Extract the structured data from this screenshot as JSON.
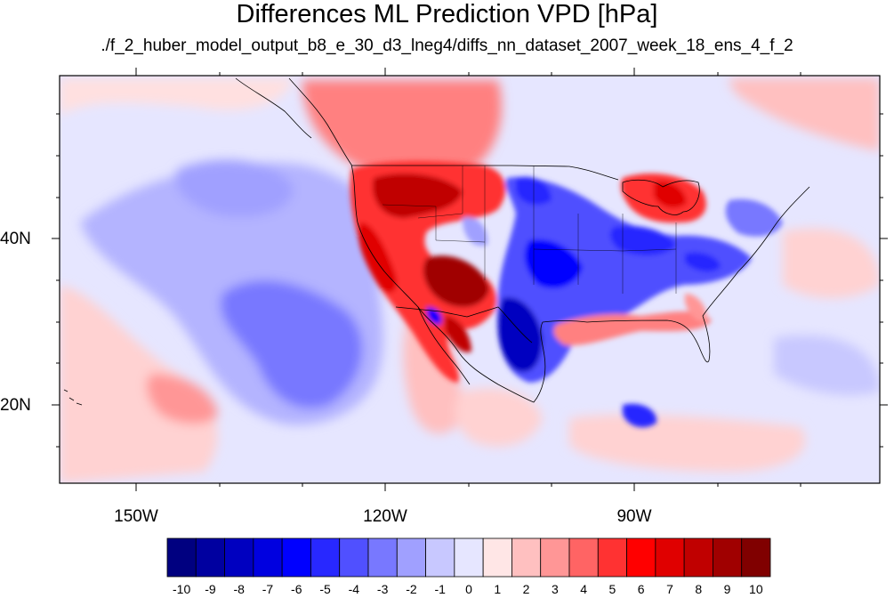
{
  "figure": {
    "title": "Differences ML Prediction VPD [hPa]",
    "subtitle": "./f_2_huber_model_output_b8_e_30_d3_lneg4/diffs_nn_dataset_2007_week_18_ens_4_f_2"
  },
  "map": {
    "projection": "cylindrical equidistant",
    "lon_range": [
      -160,
      -62
    ],
    "lat_range": [
      10,
      59
    ],
    "lat_labels": [
      "40N",
      "20N"
    ],
    "lon_labels": [
      "150W",
      "120W",
      "90W"
    ],
    "background_color": "#e6e6ff",
    "regions": [
      {
        "name": "Pacific Northwest / Great Basin",
        "sign": "positive",
        "level": 8
      },
      {
        "name": "Southwest US / Four Corners",
        "sign": "positive",
        "level": 8
      },
      {
        "name": "California coast",
        "sign": "positive",
        "level": 7
      },
      {
        "name": "British Columbia",
        "sign": "positive",
        "level": 4
      },
      {
        "name": "Great Lakes / Michigan",
        "sign": "positive",
        "level": 6
      },
      {
        "name": "Gulf Coast Louisiana",
        "sign": "positive",
        "level": 4
      },
      {
        "name": "Southern Plains / Texas",
        "sign": "negative",
        "level": -7
      },
      {
        "name": "Central Plains",
        "sign": "negative",
        "level": -5
      },
      {
        "name": "Ohio Valley",
        "sign": "negative",
        "level": -5
      },
      {
        "name": "Northeast Pacific subtropics",
        "sign": "negative",
        "level": -4
      }
    ]
  },
  "colorbar": {
    "labels": [
      "-10",
      "-9",
      "-8",
      "-7",
      "-6",
      "-5",
      "-4",
      "-3",
      "-2",
      "-1",
      "0",
      "1",
      "2",
      "3",
      "4",
      "5",
      "6",
      "7",
      "8",
      "9",
      "10"
    ],
    "colors": [
      "#000080",
      "#0000a0",
      "#0000c0",
      "#0000e0",
      "#0000ff",
      "#2828ff",
      "#5050ff",
      "#7878ff",
      "#a0a0ff",
      "#c8c8ff",
      "#e6e6ff",
      "#ffe6e6",
      "#ffc0c0",
      "#ff9696",
      "#ff6464",
      "#ff3232",
      "#ff0000",
      "#e00000",
      "#c00000",
      "#a00000",
      "#800000"
    ]
  }
}
